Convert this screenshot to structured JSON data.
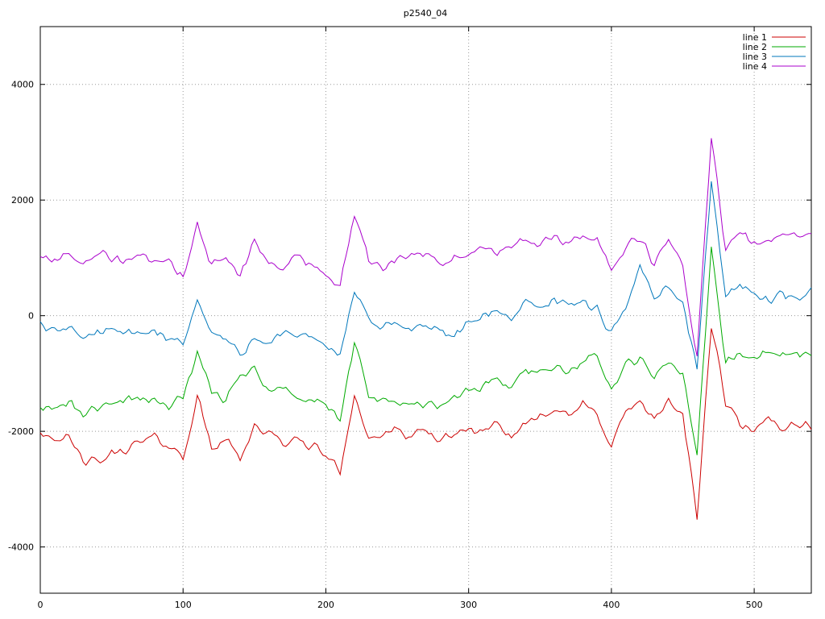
{
  "chart_data": {
    "type": "line",
    "title": "p2540_04",
    "xlabel": "",
    "ylabel": "",
    "xlim": [
      0,
      540
    ],
    "ylim": [
      -4800,
      5000
    ],
    "x_ticks": [
      0,
      100,
      200,
      300,
      400,
      500
    ],
    "y_ticks": [
      -4000,
      -2000,
      0,
      2000,
      4000
    ],
    "grid": true,
    "grid_color": "#999999",
    "border_color": "#000000",
    "legend_position": "top-right",
    "noise_amplitude": 100,
    "x_start": 0,
    "x_step": 10,
    "series": [
      {
        "name": "line 1",
        "color": "#cc0000",
        "values": [
          -2000,
          -2100,
          -2150,
          -2500,
          -2550,
          -2400,
          -2300,
          -2200,
          -2100,
          -2250,
          -2450,
          -1400,
          -2300,
          -2150,
          -2450,
          -1900,
          -2050,
          -2200,
          -2150,
          -2250,
          -2400,
          -2700,
          -1350,
          -2150,
          -2050,
          -2000,
          -2100,
          -2000,
          -2150,
          -2050,
          -1950,
          -2050,
          -1900,
          -2100,
          -1850,
          -1700,
          -1600,
          -1750,
          -1550,
          -1700,
          -2250,
          -1650,
          -1500,
          -1850,
          -1450,
          -1700,
          -3500,
          -150,
          -1500,
          -1900,
          -2050,
          -1750,
          -1950,
          -1850,
          -1950
        ]
      },
      {
        "name": "line 2",
        "color": "#00aa00",
        "values": [
          -1550,
          -1600,
          -1500,
          -1700,
          -1600,
          -1500,
          -1450,
          -1400,
          -1500,
          -1550,
          -1400,
          -700,
          -1300,
          -1450,
          -1050,
          -850,
          -1300,
          -1250,
          -1400,
          -1500,
          -1550,
          -1800,
          -450,
          -1400,
          -1500,
          -1450,
          -1550,
          -1500,
          -1600,
          -1400,
          -1300,
          -1200,
          -1100,
          -1250,
          -900,
          -1000,
          -850,
          -950,
          -800,
          -700,
          -1300,
          -850,
          -750,
          -1100,
          -800,
          -1000,
          -2400,
          1200,
          -800,
          -700,
          -750,
          -600,
          -700,
          -650,
          -650
        ]
      },
      {
        "name": "line 3",
        "color": "#0077bb",
        "values": [
          -150,
          -300,
          -250,
          -350,
          -300,
          -250,
          -300,
          -350,
          -250,
          -400,
          -450,
          250,
          -300,
          -400,
          -700,
          -350,
          -450,
          -300,
          -400,
          -350,
          -500,
          -700,
          450,
          -100,
          -200,
          -150,
          -250,
          -100,
          -300,
          -350,
          -150,
          0,
          100,
          -50,
          250,
          150,
          300,
          150,
          250,
          100,
          -350,
          150,
          900,
          300,
          500,
          200,
          -900,
          2400,
          300,
          600,
          350,
          250,
          400,
          300,
          450
        ]
      },
      {
        "name": "line 4",
        "color": "#aa00cc",
        "values": [
          1050,
          950,
          1000,
          900,
          1100,
          1000,
          950,
          1050,
          1000,
          900,
          650,
          1550,
          900,
          1000,
          700,
          1250,
          950,
          800,
          1050,
          900,
          700,
          550,
          1750,
          950,
          850,
          1000,
          1100,
          1050,
          900,
          950,
          1100,
          1150,
          1050,
          1200,
          1300,
          1250,
          1350,
          1200,
          1400,
          1350,
          800,
          1200,
          1350,
          900,
          1300,
          850,
          -700,
          3100,
          1100,
          1450,
          1250,
          1300,
          1400,
          1350,
          1400
        ]
      }
    ]
  }
}
